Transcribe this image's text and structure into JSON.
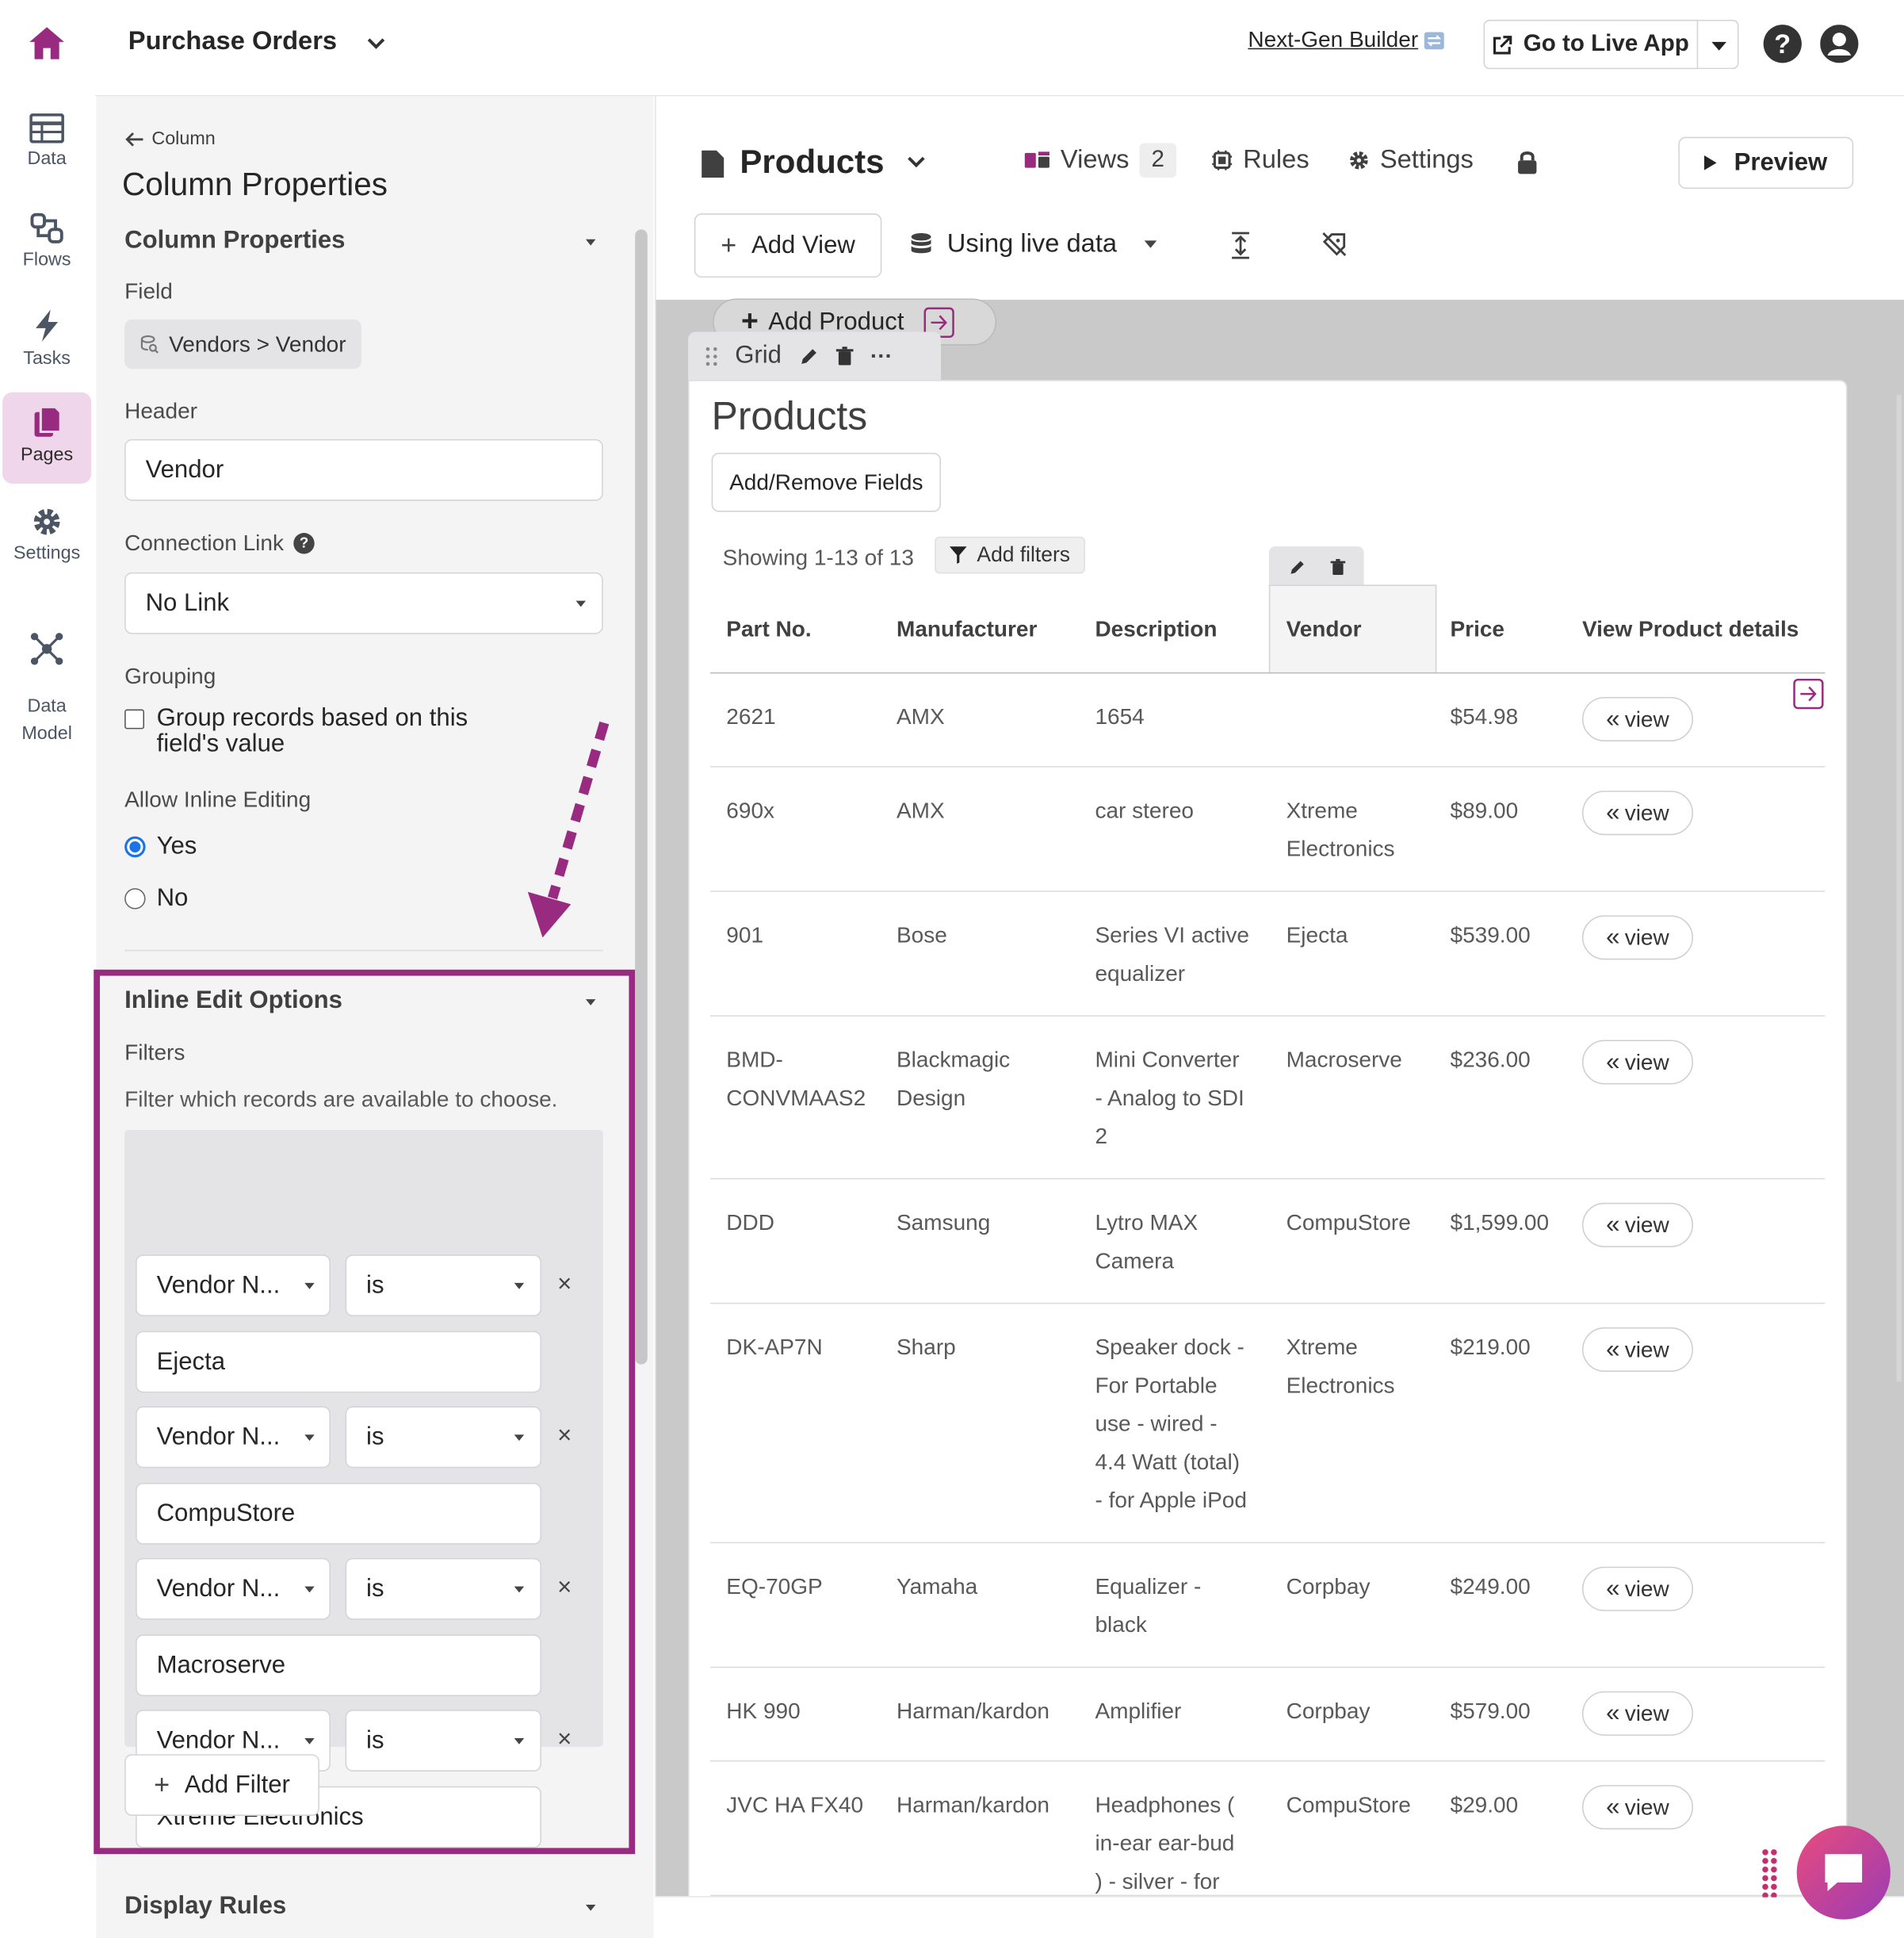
{
  "topbar": {
    "app_title": "Purchase Orders",
    "next_gen": "Next-Gen Builder",
    "live_app": "Go to Live App"
  },
  "nav": {
    "items": [
      {
        "label": "Data",
        "icon": "table-icon"
      },
      {
        "label": "Flows",
        "icon": "flows-icon"
      },
      {
        "label": "Tasks",
        "icon": "bolt-icon"
      },
      {
        "label": "Pages",
        "icon": "pages-icon"
      },
      {
        "label": "Settings",
        "icon": "gear-icon"
      },
      {
        "label": "Data\nModel",
        "icon": "data-model-icon"
      }
    ]
  },
  "panel": {
    "back": "Column",
    "title": "Column Properties",
    "section1": "Column Properties",
    "field_label": "Field",
    "field_value": "Vendors > Vendor",
    "header_label": "Header",
    "header_value": "Vendor",
    "connection_label": "Connection Link",
    "connection_value": "No Link",
    "grouping_label": "Grouping",
    "grouping_checkbox": "Group records based on this field's value",
    "inline_label": "Allow Inline Editing",
    "yes": "Yes",
    "no": "No",
    "inline_section": "Inline Edit Options",
    "filters_label": "Filters",
    "filters_desc": "Filter which records are available to choose.",
    "filters": [
      {
        "field": "Vendor N...",
        "op": "is",
        "value": "Ejecta"
      },
      {
        "field": "Vendor N...",
        "op": "is",
        "value": "CompuStore"
      },
      {
        "field": "Vendor N...",
        "op": "is",
        "value": "Macroserve"
      },
      {
        "field": "Vendor N...",
        "op": "is",
        "value": "Xtreme Electronics"
      }
    ],
    "add_filter": "Add Filter",
    "display_rules": "Display Rules"
  },
  "workspace": {
    "page_title": "Products",
    "views": "Views",
    "views_count": "2",
    "rules": "Rules",
    "settings": "Settings",
    "preview": "Preview",
    "add_view": "Add View",
    "live_data": "Using live data",
    "add_product": "Add Product",
    "grid_label": "Grid",
    "grid_title": "Products",
    "add_remove": "Add/Remove Fields",
    "showing": "Showing 1-13 of 13",
    "add_filters": "Add filters"
  },
  "table": {
    "headers": [
      "Part No.",
      "Manufacturer",
      "Description",
      "Vendor",
      "Price",
      "View Product details"
    ],
    "view_label": "view",
    "rows": [
      [
        "2621",
        "AMX",
        "1654",
        "",
        "$54.98"
      ],
      [
        "690x",
        "AMX",
        "car stereo",
        "Xtreme\nElectronics",
        "$89.00"
      ],
      [
        "901",
        "Bose",
        "Series VI active\nequalizer",
        "Ejecta",
        "$539.00"
      ],
      [
        "BMD-\nCONVMAAS2",
        "Blackmagic\nDesign",
        "Mini Converter\n- Analog to SDI\n2",
        "Macroserve",
        "$236.00"
      ],
      [
        "DDD",
        "Samsung",
        "Lytro MAX\nCamera",
        "CompuStore",
        "$1,599.00"
      ],
      [
        "DK-AP7N",
        "Sharp",
        "Speaker dock -\nFor Portable\nuse - wired -\n4.4 Watt (total)\n- for Apple iPod",
        "Xtreme\nElectronics",
        "$219.00"
      ],
      [
        "EQ-70GP",
        "Yamaha",
        "Equalizer -\nblack",
        "Corpbay",
        "$249.00"
      ],
      [
        "HK 990",
        "Harman/kardon",
        "Amplifier",
        "Corpbay",
        "$579.00"
      ],
      [
        "JVC HA FX40",
        "Harman/kardon",
        "Headphones (\nin-ear ear-bud\n) - silver - for",
        "CompuStore",
        "$29.00"
      ]
    ]
  },
  "colors": {
    "brand": "#982a7f",
    "highlight": "#982a7f"
  }
}
